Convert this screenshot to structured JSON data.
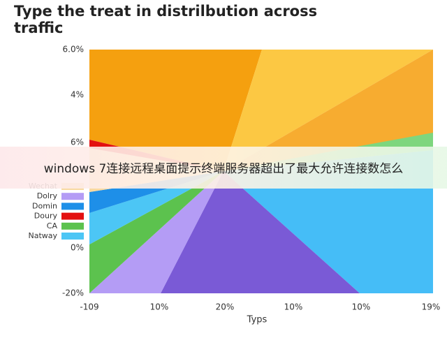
{
  "title": [
    "Type the treat in distrilbution across",
    "traffic"
  ],
  "y_axis_labels": [
    "6.0%",
    "4%",
    "6%",
    "0%",
    "-20%"
  ],
  "x_axis_labels": [
    "-109",
    "10%",
    "20%",
    "10%",
    "10%",
    "19%"
  ],
  "x_axis_title": "Typs",
  "legend": [
    {
      "label": "Wechat",
      "color": "#f8d9a0"
    },
    {
      "label": "Dolry",
      "color": "#b49cf5"
    },
    {
      "label": "Domin",
      "color": "#1e8fe8"
    },
    {
      "label": "Doury",
      "color": "#e31010"
    },
    {
      "label": "CA",
      "color": "#5cc24e"
    },
    {
      "label": "Natway",
      "color": "#4cc6f5"
    }
  ],
  "banner": "windows 7连接远程桌面提示终端服务器超出了最大允许连接数怎么"
}
